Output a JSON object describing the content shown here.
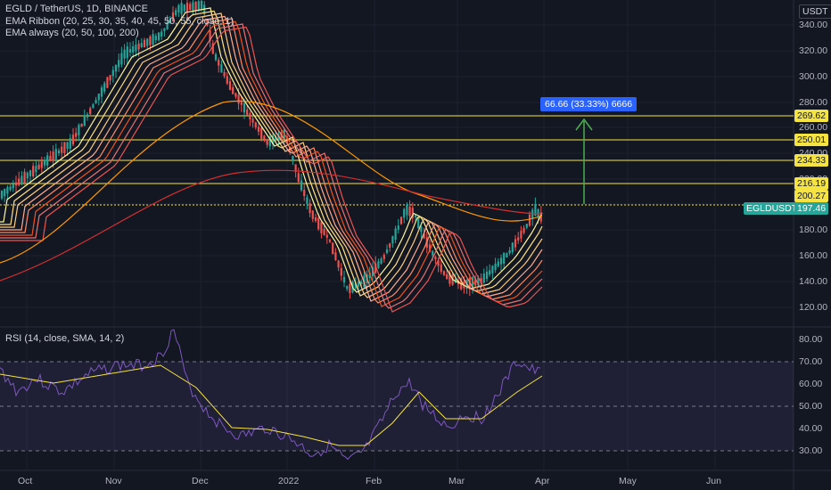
{
  "header": {
    "symbol_line": "EGLD / TetherUS, 1D, BINANCE",
    "ema_ribbon_line": "EMA Ribbon (20, 25, 30, 35, 40, 45, 50, 55, close, 1)",
    "ema_always_line": "EMA always (20, 50, 100, 200)",
    "currency": "USDT"
  },
  "price_axis": {
    "ticks": [
      "340.00",
      "320.00",
      "300.00",
      "280.00",
      "260.00",
      "240.00",
      "220.00",
      "200.00",
      "180.00",
      "160.00",
      "140.00",
      "120.00"
    ]
  },
  "rsi_panel": {
    "legend": "RSI (14, close, SMA, 14, 2)",
    "ticks": [
      "80.00",
      "70.00",
      "60.00",
      "50.00",
      "40.00",
      "30.00"
    ]
  },
  "time_axis": {
    "ticks": [
      "Oct",
      "Nov",
      "Dec",
      "2022",
      "Feb",
      "Mar",
      "Apr",
      "May",
      "Jun"
    ]
  },
  "level_tags": [
    "269.62",
    "250.01",
    "234.33",
    "216.19",
    "200.27"
  ],
  "current_price": {
    "symbol": "EGLDUSDT",
    "value": "197.46"
  },
  "measure_tool": {
    "label": "66.66 (33.33%) 6666"
  },
  "colors": {
    "background": "#131722",
    "up": "#26a69a",
    "down": "#ef5350",
    "level_line": "#f5e342",
    "measure_blue": "#2962ff",
    "measure_arrow": "#4caf50",
    "rsi_line": "#7e57c2",
    "rsi_ma": "#f5e342",
    "price_tag": "#26a69a"
  }
}
